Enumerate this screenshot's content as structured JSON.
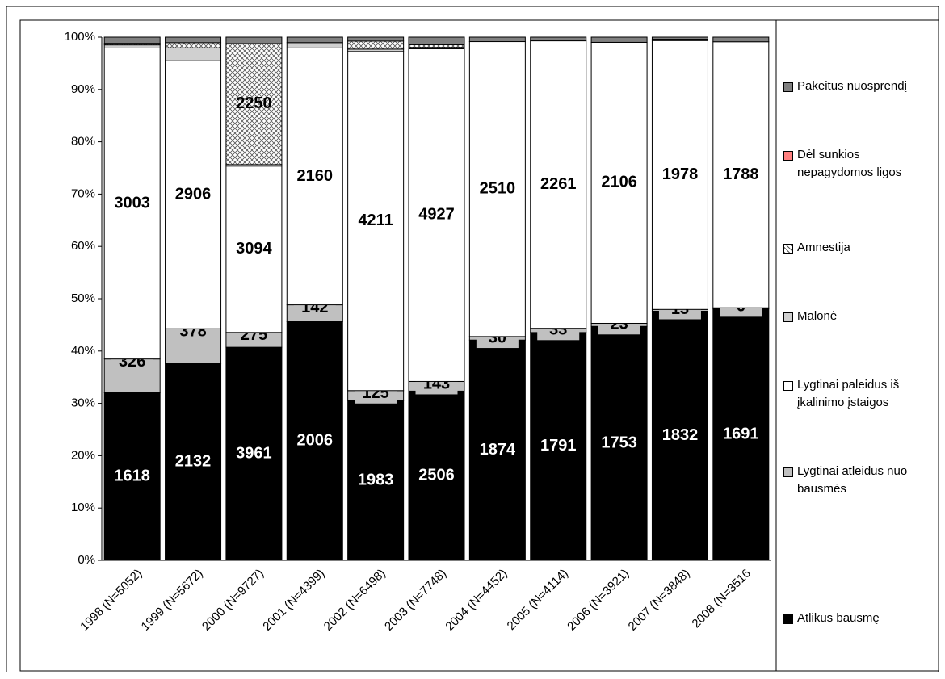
{
  "chart_data": {
    "type": "bar",
    "stacked": "percent",
    "categories": [
      "1998 (N=5052)",
      "1999 (N=5672)",
      "2000 (N=9727)",
      "2001 (N=4399)",
      "2002 (N=6498)",
      "2003 (N=7748)",
      "2004 (N=4452)",
      "2005 (N=4114)",
      "2006 (N=3921)",
      "2007 (N=3848)",
      "2008 (N=3516"
    ],
    "series": [
      {
        "name": "Atlikus bausmę",
        "color": "#000000",
        "values": [
          1618,
          2132,
          3961,
          2006,
          1983,
          2506,
          1874,
          1791,
          1753,
          1832,
          1691
        ]
      },
      {
        "name": "Lygtinai atleidus nuo bausmės",
        "color": "#c0c0c0",
        "values": [
          326,
          378,
          275,
          142,
          125,
          143,
          30,
          33,
          23,
          13,
          6
        ]
      },
      {
        "name": "Lygtinai paleidus iš įkalinimo įstaigos",
        "color": "#ffffff",
        "values": [
          3003,
          2906,
          3094,
          2160,
          4211,
          4927,
          2510,
          2261,
          2106,
          1978,
          1788
        ]
      },
      {
        "name": "Malonė",
        "color": "#d0d0d0",
        "values": [
          30,
          140,
          27,
          45,
          30,
          20,
          0,
          0,
          0,
          10,
          0
        ]
      },
      {
        "name": "Amnestija",
        "color": "#ffffff",
        "pattern": "crosshatch",
        "values": [
          15,
          56,
          2250,
          0,
          100,
          40,
          0,
          0,
          0,
          0,
          0
        ]
      },
      {
        "name": "Dėl sunkios nepagydomos ligos",
        "color": "#ff8080",
        "values": [
          0,
          0,
          0,
          0,
          0,
          0,
          0,
          0,
          0,
          0,
          0
        ]
      },
      {
        "name": "Pakeitus nuosprendį",
        "color": "#808080",
        "values": [
          60,
          60,
          120,
          46,
          49,
          112,
          38,
          29,
          39,
          15,
          31
        ]
      }
    ],
    "ylim": [
      0,
      100
    ],
    "yticks": [
      {
        "value": 0,
        "label": "0%"
      },
      {
        "value": 10,
        "label": "10%"
      },
      {
        "value": 20,
        "label": "20%"
      },
      {
        "value": 30,
        "label": "30%"
      },
      {
        "value": 40,
        "label": "40%"
      },
      {
        "value": 50,
        "label": "50%"
      },
      {
        "value": 60,
        "label": "60%"
      },
      {
        "value": 70,
        "label": "70%"
      },
      {
        "value": 80,
        "label": "80%"
      },
      {
        "value": 90,
        "label": "90%"
      },
      {
        "value": 100,
        "label": "100%"
      }
    ],
    "legend": "right"
  }
}
